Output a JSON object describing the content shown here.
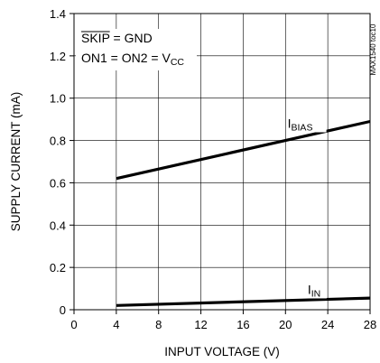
{
  "chart_data": {
    "type": "line",
    "xlabel": "INPUT VOLTAGE (V)",
    "ylabel": "SUPPLY CURRENT (mA)",
    "xlim": [
      0,
      28
    ],
    "ylim": [
      0,
      1.4
    ],
    "x_ticks": [
      "0",
      "4",
      "8",
      "12",
      "16",
      "20",
      "24",
      "28"
    ],
    "y_ticks": [
      "0",
      "0.2",
      "0.4",
      "0.6",
      "0.8",
      "1.0",
      "1.2",
      "1.4"
    ],
    "grid": true,
    "series": [
      {
        "name": "I_BIAS",
        "label_main": "I",
        "label_sub": "BIAS",
        "x": [
          4,
          28
        ],
        "y": [
          0.62,
          0.89
        ]
      },
      {
        "name": "I_IN",
        "label_main": "I",
        "label_sub": "IN",
        "x": [
          4,
          28
        ],
        "y": [
          0.02,
          0.055
        ]
      }
    ],
    "annotations": {
      "line1_overbar": "SKIP",
      "line1_rest": " = GND",
      "line2_main": "ON1 = ON2 = V",
      "line2_sub": "CC"
    },
    "figure_id": "MAX1540 toc10",
    "line_color": "#000000"
  }
}
